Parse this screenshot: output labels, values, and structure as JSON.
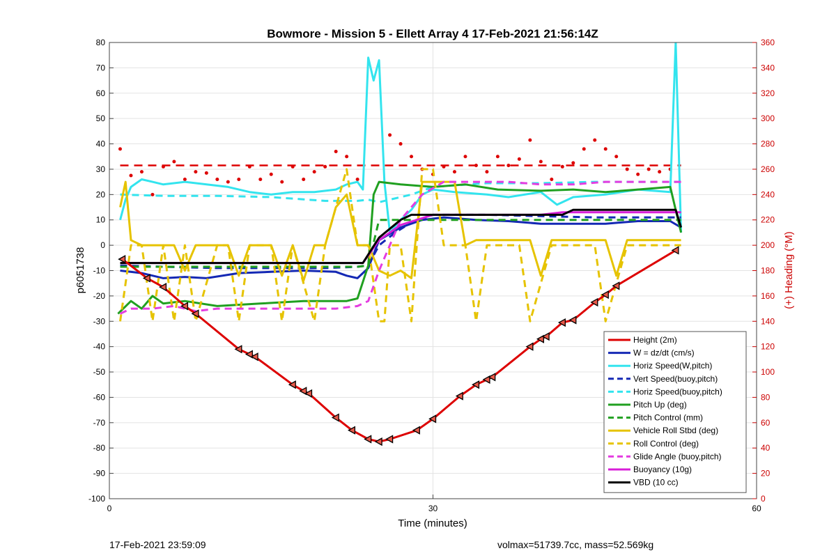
{
  "chart_data": {
    "type": "line",
    "title": "Bowmore - Mission 5 - Ellett Array 4 17-Feb-2021 21:56:14Z",
    "xlabel": "Time (minutes)",
    "ylabel": "p6051738",
    "y2label": "(+) Heading (°M)",
    "xlim": [
      0,
      60
    ],
    "ylim": [
      -100,
      80
    ],
    "y2lim": [
      0,
      360
    ],
    "x_ticks": [
      "0",
      "30",
      "60"
    ],
    "y_ticks": [
      "80",
      "70",
      "60",
      "50",
      "40",
      "30",
      "20",
      "10",
      "0",
      "-10",
      "-20",
      "-30",
      "-40",
      "-50",
      "-60",
      "-70",
      "-80",
      "-90",
      "-100"
    ],
    "y2_ticks": [
      "360",
      "340",
      "320",
      "300",
      "280",
      "260",
      "240",
      "220",
      "200",
      "180",
      "160",
      "140",
      "120",
      "100",
      "80",
      "60",
      "40",
      "20",
      "0"
    ],
    "grid": true,
    "legend_position": "bottom-right",
    "series": [
      {
        "name": "Height (2m)",
        "color": "#dd0000",
        "style": "solid",
        "x": [
          1.2,
          3.5,
          5,
          7,
          8,
          12,
          13,
          13.5,
          17,
          18,
          18.5,
          21,
          22.5,
          24,
          25,
          26,
          28.5,
          30,
          32.5,
          34,
          35,
          35.5,
          39,
          40,
          40.5,
          42,
          43,
          45,
          46,
          47,
          52.5
        ],
        "values": [
          -5.5,
          -13,
          -16.5,
          -24,
          -27,
          -41,
          -43,
          -44,
          -55,
          -57.5,
          -58.5,
          -68,
          -73,
          -76.5,
          -77.5,
          -76.5,
          -73,
          -68.5,
          -59.5,
          -55,
          -53,
          -52,
          -40,
          -37,
          -36,
          -30.5,
          -29.5,
          -22.5,
          -19.5,
          -16,
          -2
        ]
      },
      {
        "name": "W = dz/dt (cm/s)",
        "color": "#1428b4",
        "style": "solid",
        "x": [
          1,
          3,
          5,
          7,
          9,
          12,
          15,
          18,
          21,
          22,
          23,
          24,
          25,
          27,
          29,
          31,
          34,
          37,
          40,
          43,
          46,
          49,
          52,
          53
        ],
        "values": [
          -10,
          -11,
          -13,
          -12.5,
          -13,
          -11,
          -10.5,
          -10,
          -10.5,
          -12,
          -13,
          -9,
          2,
          7,
          10,
          11,
          10,
          9.5,
          8.5,
          8.5,
          8.5,
          9.5,
          9.5,
          7
        ]
      },
      {
        "name": "Horiz Speed(W,pitch)",
        "color": "#33e4ee",
        "style": "solid",
        "x": [
          1,
          1.5,
          2,
          3,
          4,
          5,
          7,
          9,
          11,
          13,
          15,
          17,
          19,
          21,
          22,
          23,
          23.5,
          24,
          24.5,
          25,
          25.5,
          26,
          27,
          28,
          29,
          30,
          32,
          35,
          37,
          40,
          41.5,
          43,
          46,
          49,
          52,
          52.5,
          53
        ],
        "values": [
          10,
          18,
          23,
          26,
          25,
          24,
          25,
          24,
          23,
          21,
          20,
          21,
          21,
          22,
          24,
          25,
          22,
          74,
          65,
          73,
          25,
          5,
          10,
          14,
          20,
          22,
          21,
          20,
          19,
          21,
          16,
          19,
          20,
          22,
          21,
          80,
          5
        ]
      },
      {
        "name": "Vert Speed(buoy,pitch)",
        "color": "#1428b4",
        "style": "dashed",
        "x": [
          1,
          5,
          10,
          15,
          20,
          23,
          24,
          25,
          26.5,
          28,
          30,
          35,
          40,
          45,
          50,
          53
        ],
        "values": [
          -8,
          -8.5,
          -9,
          -9,
          -9,
          -8.5,
          -8,
          0,
          5,
          9,
          12,
          12,
          11.5,
          11,
          11,
          11
        ]
      },
      {
        "name": "Horiz Speed(buoy,pitch)",
        "color": "#33e4ee",
        "style": "dashed",
        "x": [
          1,
          5,
          10,
          15,
          20,
          23,
          24,
          25,
          26,
          28,
          30,
          35,
          40,
          45,
          50,
          53
        ],
        "values": [
          20,
          19.5,
          19.5,
          19,
          17.5,
          17.5,
          18,
          17,
          18,
          20,
          23,
          24.5,
          24.5,
          25,
          25,
          25
        ]
      },
      {
        "name": "Pitch Up (deg)",
        "color": "#20a020",
        "style": "solid",
        "x": [
          0.8,
          2,
          3,
          4,
          5,
          7,
          10,
          14,
          18,
          22,
          23,
          24,
          24.5,
          25,
          27,
          30,
          33,
          36,
          40,
          43,
          46,
          49,
          52,
          53
        ],
        "values": [
          -27,
          -22,
          -25,
          -20,
          -23,
          -22,
          -24,
          -23,
          -22,
          -22,
          -21,
          -8,
          20,
          25,
          24,
          23,
          24,
          22,
          21.5,
          22,
          21,
          22,
          23,
          5
        ]
      },
      {
        "name": "Pitch Control (mm)",
        "color": "#20a020",
        "style": "dashed",
        "x": [
          1,
          10,
          20,
          23,
          24,
          25,
          27,
          35,
          45,
          53
        ],
        "values": [
          -8.5,
          -8.5,
          -8.5,
          -8.5,
          -8,
          10,
          10,
          10,
          10,
          10
        ]
      },
      {
        "name": "Vehicle Roll Stbd (deg)",
        "color": "#e6c300",
        "style": "solid",
        "x": [
          1,
          1.5,
          2,
          3,
          5,
          6,
          7,
          8,
          9,
          11,
          12,
          13,
          15,
          16,
          17,
          18,
          19,
          20,
          21,
          22,
          23,
          24,
          25,
          26,
          27,
          28,
          29,
          30,
          32,
          33,
          34,
          36,
          39,
          40,
          41,
          43,
          46,
          47,
          48,
          50,
          52,
          53
        ],
        "values": [
          15,
          25,
          2,
          0,
          0,
          0,
          -10,
          0,
          0,
          0,
          -12,
          0,
          0,
          -12,
          0,
          -14,
          0,
          0,
          15,
          20,
          0,
          0,
          -10,
          -12,
          -10,
          -13,
          25,
          25,
          25,
          0,
          2,
          2,
          2,
          -12,
          2,
          2,
          2,
          -12,
          2,
          2,
          2,
          2
        ]
      },
      {
        "name": "Roll Control (deg)",
        "color": "#e6c300",
        "style": "dashed",
        "x": [
          1,
          2,
          3,
          4,
          5,
          6,
          7,
          8,
          10,
          11,
          12,
          13,
          15,
          16,
          17,
          19,
          20,
          22,
          23,
          24,
          25,
          25.5,
          26,
          27,
          28,
          29,
          30,
          31,
          33,
          34,
          35,
          37,
          38,
          39,
          41,
          42,
          45,
          46,
          48,
          50,
          52,
          53
        ],
        "values": [
          -30,
          0,
          0,
          -30,
          0,
          -30,
          0,
          -30,
          0,
          0,
          -30,
          0,
          0,
          -30,
          0,
          -30,
          0,
          30,
          0,
          0,
          -30,
          -30,
          0,
          0,
          -30,
          30,
          30,
          0,
          0,
          -30,
          0,
          0,
          0,
          -30,
          0,
          0,
          0,
          -30,
          0,
          0,
          0,
          0
        ]
      },
      {
        "name": "Glide Angle (buoy,pitch)",
        "color": "#e43de0",
        "style": "dashed",
        "x": [
          1,
          2,
          4,
          6,
          8,
          10,
          12,
          15,
          18,
          21,
          23,
          24,
          25,
          27,
          29,
          31,
          34,
          37,
          40,
          43,
          46,
          49,
          52,
          53
        ],
        "values": [
          -27,
          -25,
          -25,
          -24,
          -26,
          -25,
          -25,
          -25,
          -25,
          -25,
          -24,
          -22,
          -10,
          10,
          20,
          25,
          25,
          25,
          24,
          24,
          25,
          25,
          25,
          25
        ]
      },
      {
        "name": "Buoyancy (10g)",
        "color": "#d81ed8",
        "style": "solid",
        "x": [
          1,
          10,
          20,
          23.5,
          25,
          27,
          30,
          35,
          40,
          42,
          45,
          50,
          53
        ],
        "values": [
          -7,
          -7,
          -7,
          -7,
          2,
          8,
          12,
          12,
          12,
          13,
          13,
          13,
          13
        ]
      },
      {
        "name": "VBD (10 cc)",
        "color": "#000000",
        "style": "solid",
        "x": [
          1,
          10,
          20,
          23.5,
          25,
          27,
          28,
          30,
          33,
          38,
          42,
          43,
          46,
          52.5,
          53
        ],
        "values": [
          -7,
          -7,
          -7,
          -7,
          3,
          10,
          12,
          12,
          12,
          12,
          12,
          14,
          14,
          14,
          7
        ]
      }
    ],
    "heading_dots": {
      "name": "Heading",
      "color": "#dd0000",
      "axis": "right",
      "reference_line": 263,
      "x": [
        1,
        2,
        3,
        4,
        5,
        6,
        7,
        8,
        9,
        10,
        11,
        12,
        13,
        14,
        15,
        16,
        17,
        18,
        19,
        20,
        21,
        22,
        23,
        26,
        27,
        28,
        29,
        30,
        31,
        32,
        33,
        34,
        35,
        36,
        37,
        38,
        39,
        40,
        41,
        42,
        43,
        44,
        45,
        46,
        47,
        48,
        49,
        50,
        51,
        52
      ],
      "values": [
        276,
        255,
        258,
        240,
        262,
        266,
        252,
        258,
        257,
        252,
        250,
        252,
        262,
        252,
        256,
        250,
        262,
        252,
        258,
        262,
        274,
        270,
        252,
        287,
        280,
        270,
        260,
        256,
        262,
        258,
        270,
        263,
        258,
        270,
        263,
        268,
        283,
        266,
        252,
        262,
        265,
        276,
        283,
        276,
        270,
        260,
        256,
        260,
        258,
        260
      ]
    },
    "markers": {
      "shape": "triangle-left",
      "x": [
        1.2,
        3.5,
        5,
        7,
        8,
        12,
        13,
        13.5,
        17,
        18,
        18.5,
        21,
        22.5,
        24,
        25,
        26,
        28.5,
        30,
        32.5,
        34,
        35,
        35.5,
        39,
        40,
        40.5,
        42,
        43,
        45,
        46,
        47,
        52.5
      ],
      "values": [
        -5.5,
        -13,
        -16.5,
        -24,
        -27,
        -41,
        -43,
        -44,
        -55,
        -57.5,
        -58.5,
        -68,
        -73,
        -76.5,
        -77.5,
        -76.5,
        -73,
        -68.5,
        -59.5,
        -55,
        -53,
        -52,
        -40,
        -37,
        -36,
        -30.5,
        -29.5,
        -22.5,
        -19.5,
        -16,
        -2
      ]
    }
  },
  "footer": {
    "left": "17-Feb-2021 23:59:09",
    "right": "volmax=51739.7cc, mass=52.569kg"
  }
}
